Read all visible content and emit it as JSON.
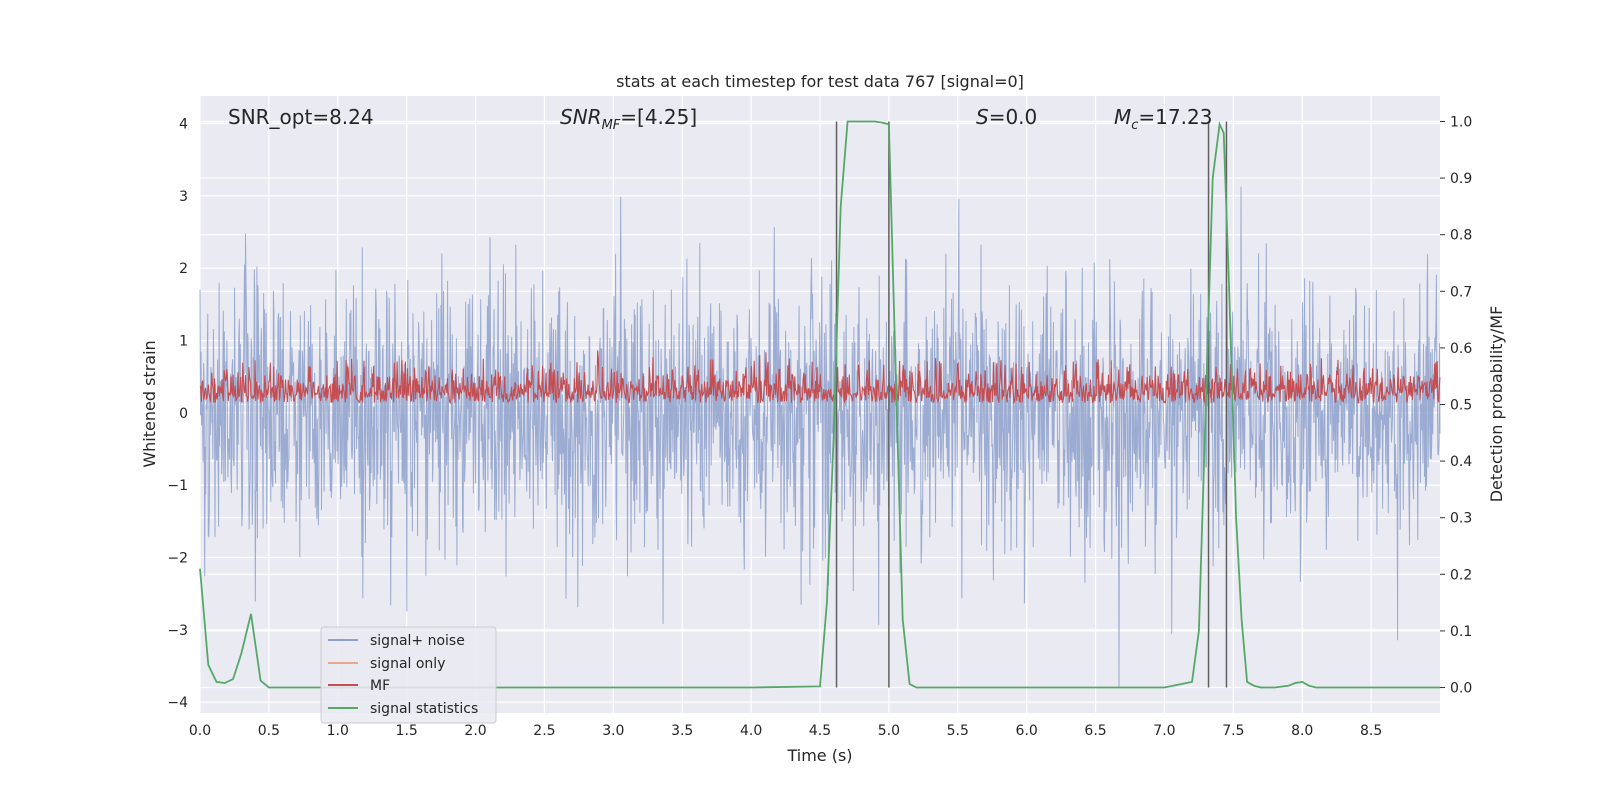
{
  "chart_data": {
    "type": "line",
    "title": "stats at each timestep for test data 767 [signal=0]",
    "xlabel": "Time (s)",
    "ylabel_left": "Whitened strain",
    "ylabel_right": "Detection probability/MF",
    "xlim": [
      0,
      9.0
    ],
    "ylim_left": [
      -4.15,
      4.38
    ],
    "ylim_right": [
      -0.045,
      1.045
    ],
    "grid": true,
    "legend_placement": "lower-left",
    "x_ticks": [
      "0.0",
      "0.5",
      "1.0",
      "1.5",
      "2.0",
      "2.5",
      "3.0",
      "3.5",
      "4.0",
      "4.5",
      "5.0",
      "5.5",
      "6.0",
      "6.5",
      "7.0",
      "7.5",
      "8.0",
      "8.5"
    ],
    "y_ticks_left": [
      "-4",
      "-3",
      "-2",
      "-1",
      "0",
      "1",
      "2",
      "3",
      "4"
    ],
    "y_ticks_right": [
      "0.0",
      "0.1",
      "0.2",
      "0.3",
      "0.4",
      "0.5",
      "0.6",
      "0.7",
      "0.8",
      "0.9",
      "1.0"
    ],
    "annotations": {
      "snr_opt": "SNR_opt=8.24",
      "snr_mf_label": "SNR",
      "snr_mf_sub": "MF",
      "snr_mf_value": "=[4.25]",
      "s_label": "S",
      "s_value": "=0.0",
      "mc_label": "M",
      "mc_sub": "c",
      "mc_value": "=17.23"
    },
    "colors": {
      "signal_noise": "#8da0cb",
      "signal_only": "#e8a88a",
      "mf": "#c44e52",
      "signal_statistics": "#55a868",
      "vlines": "#606060",
      "axes_bg": "#eaeaf2",
      "grid": "#ffffff"
    },
    "vlines_x": [
      4.62,
      5.0,
      7.32,
      7.45
    ],
    "vlines_range": [
      0.0,
      1.0
    ],
    "series": [
      {
        "name": "signal+ noise",
        "axis": "left",
        "description_values": {
          "amplitude_std": 0.9,
          "typical_max": 2.5,
          "typical_min": -2.5,
          "peak_max": 4.0,
          "peak_min": -3.8
        }
      },
      {
        "name": "signal only",
        "axis": "left",
        "values": []
      },
      {
        "name": "MF",
        "axis": "right",
        "description_values": {
          "baseline": 0.5,
          "typical_max": 0.58,
          "peak_max": 0.62
        }
      },
      {
        "name": "signal statistics",
        "axis": "right",
        "x": [
          0.0,
          0.06,
          0.12,
          0.18,
          0.24,
          0.3,
          0.37,
          0.44,
          0.5,
          0.56,
          1.0,
          2.0,
          3.0,
          4.0,
          4.5,
          4.55,
          4.6,
          4.65,
          4.7,
          4.75,
          4.8,
          4.9,
          4.95,
          5.0,
          5.05,
          5.1,
          5.15,
          5.2,
          5.5,
          6.0,
          6.5,
          7.0,
          7.2,
          7.25,
          7.3,
          7.35,
          7.4,
          7.43,
          7.47,
          7.52,
          7.56,
          7.6,
          7.65,
          7.7,
          7.8,
          7.9,
          7.95,
          8.0,
          8.05,
          8.1,
          8.5,
          9.0
        ],
        "y": [
          0.21,
          0.04,
          0.01,
          0.008,
          0.015,
          0.06,
          0.13,
          0.012,
          0.0,
          0.0,
          0.0,
          0.0,
          0.0,
          0.0,
          0.002,
          0.15,
          0.45,
          0.85,
          1.0,
          1.0,
          1.0,
          1.0,
          0.998,
          0.995,
          0.55,
          0.12,
          0.006,
          0.0,
          0.0,
          0.0,
          0.0,
          0.0,
          0.01,
          0.1,
          0.5,
          0.9,
          0.995,
          0.98,
          0.7,
          0.3,
          0.12,
          0.01,
          0.003,
          0.0,
          0.0,
          0.003,
          0.008,
          0.01,
          0.003,
          0.0,
          0.0,
          0.0
        ]
      }
    ]
  }
}
